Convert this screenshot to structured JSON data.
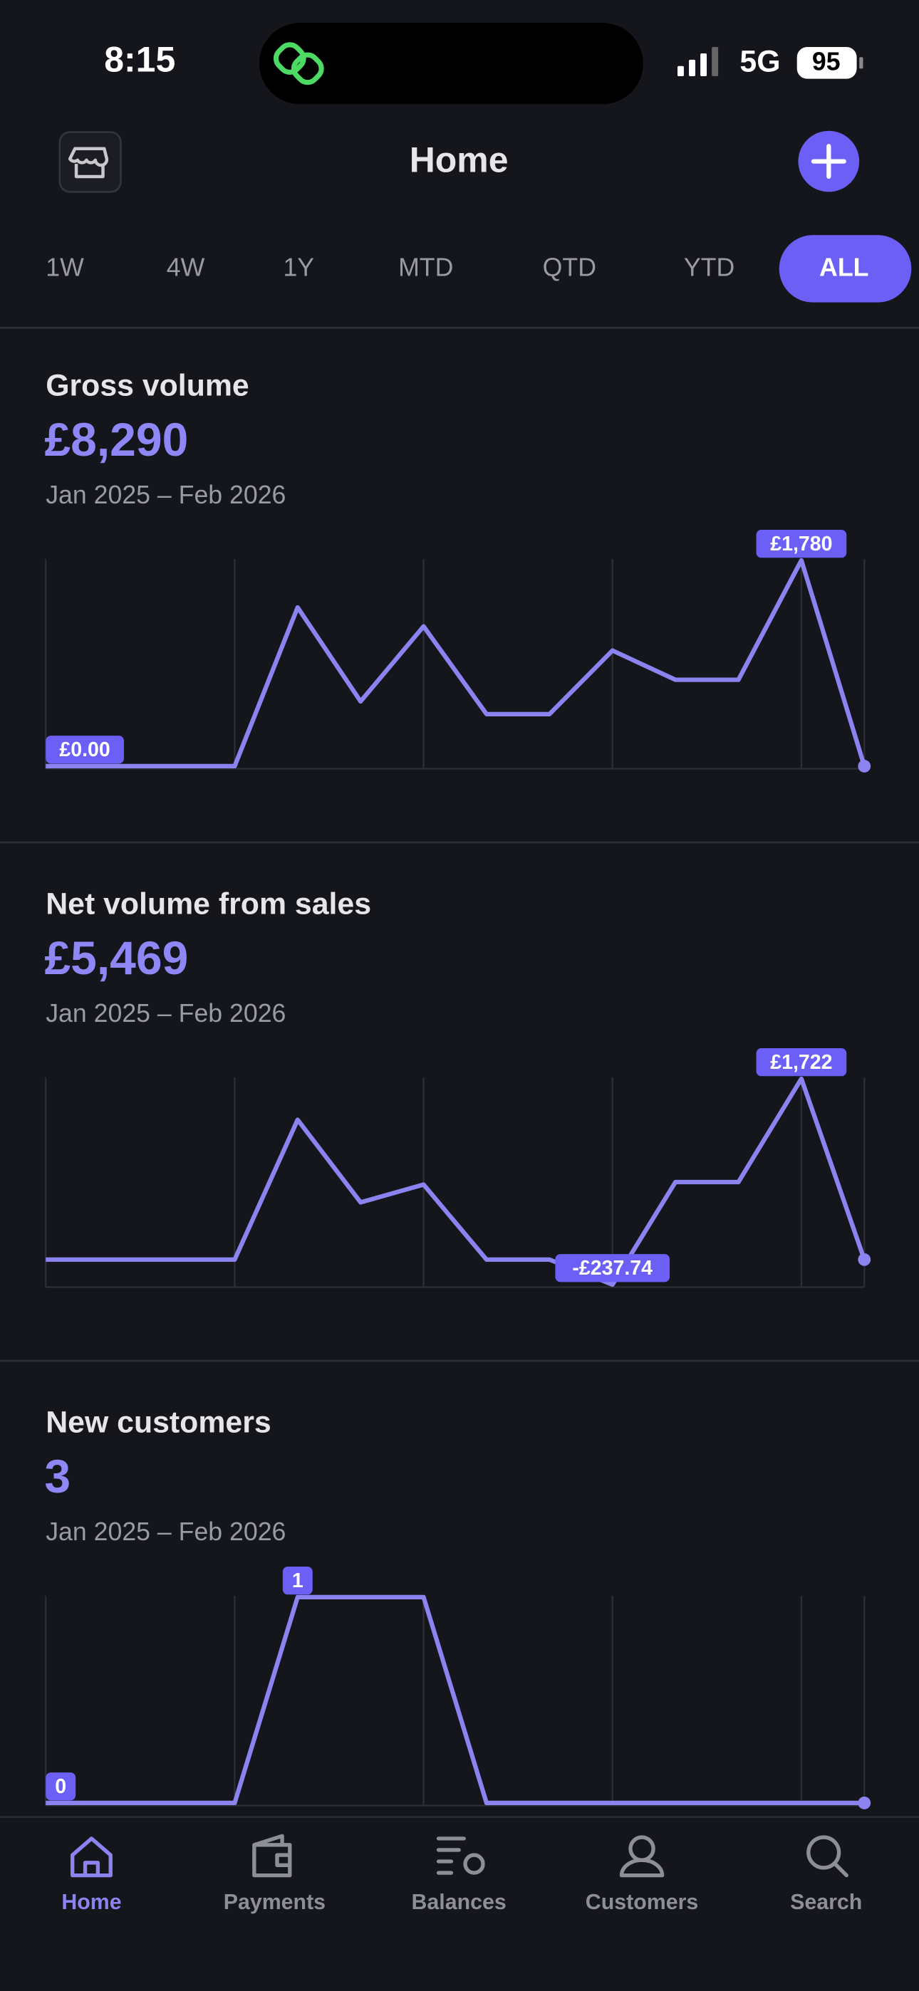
{
  "status_bar": {
    "time": "8:15",
    "network": "5G",
    "battery": "95"
  },
  "header": {
    "title": "Home"
  },
  "periods": {
    "options": [
      "1W",
      "4W",
      "1Y",
      "MTD",
      "QTD",
      "YTD",
      "ALL"
    ],
    "selected": 6
  },
  "cards": [
    {
      "title": "Gross volume",
      "total": "£8,290",
      "period": "Jan 2025 – Feb 2026",
      "chart": {
        "type": "line",
        "color": "#8b83f0",
        "values": [
          0,
          0,
          0,
          0,
          1373,
          560,
          1209,
          450,
          450,
          1000,
          747,
          747,
          1780,
          0
        ],
        "value_labels": [
          "£0.00",
          null,
          null,
          null,
          null,
          null,
          null,
          null,
          null,
          null,
          null,
          null,
          "£1,780",
          null
        ]
      }
    },
    {
      "title": "Net volume from sales",
      "total": "£5,469",
      "period": "Jan 2025 – Feb 2026",
      "chart": {
        "type": "line",
        "color": "#8b83f0",
        "values": [
          0,
          0,
          0,
          0,
          1331,
          545,
          714,
          0,
          0,
          -237.74,
          738,
          738,
          1722,
          0
        ],
        "value_labels": [
          null,
          null,
          null,
          null,
          null,
          null,
          null,
          null,
          null,
          "-£237.74",
          null,
          null,
          "£1,722",
          null
        ]
      }
    },
    {
      "title": "New customers",
      "total": "3",
      "period": "Jan 2025 – Feb 2026",
      "chart": {
        "type": "line",
        "color": "#8b83f0",
        "values": [
          0,
          0,
          0,
          0,
          1,
          1,
          1,
          0,
          0,
          0,
          0,
          0,
          0,
          0
        ],
        "value_labels": [
          "0",
          null,
          null,
          null,
          "1",
          null,
          null,
          null,
          null,
          null,
          null,
          null,
          null,
          null
        ]
      }
    }
  ],
  "nav": {
    "items": [
      "Home",
      "Payments",
      "Balances",
      "Customers",
      "Search"
    ],
    "selected": 0
  }
}
